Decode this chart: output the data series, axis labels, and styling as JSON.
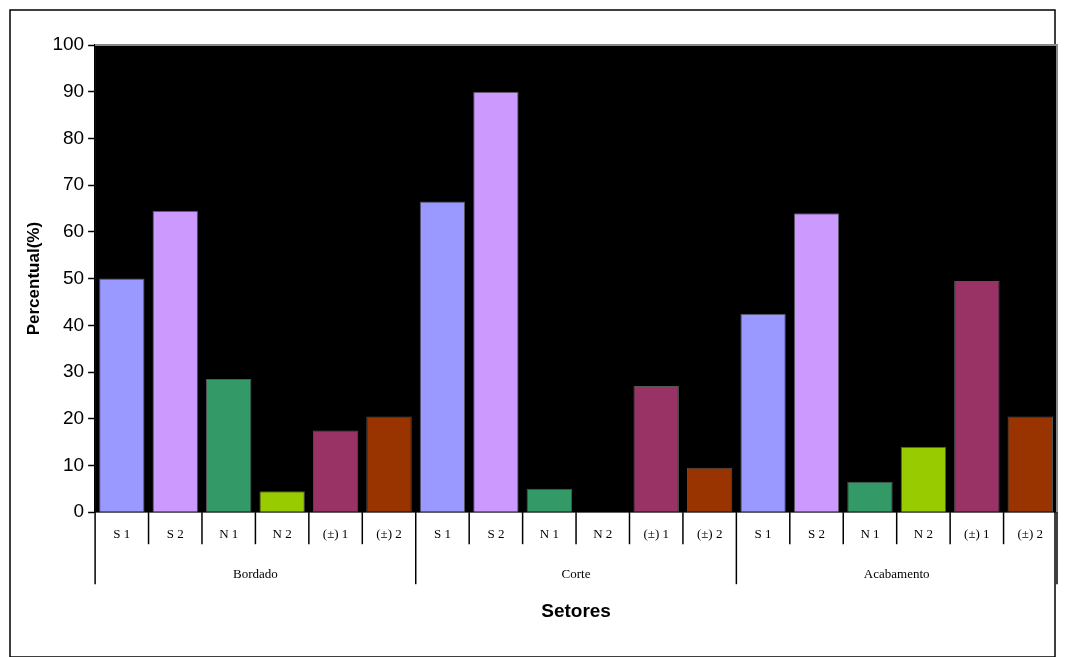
{
  "chart_data": {
    "type": "bar",
    "xlabel": "Setores",
    "ylabel": "Percentual(%)",
    "categories": [
      "Bordado",
      "Corte",
      "Acabamento"
    ],
    "series": [
      {
        "name": "S 1",
        "color": "#9999ff",
        "values": [
          50,
          66.5,
          42.5
        ]
      },
      {
        "name": "S 2",
        "color": "#cc99ff",
        "values": [
          64.5,
          90,
          64
        ]
      },
      {
        "name": "N 1",
        "color": "#339966",
        "values": [
          28.5,
          5,
          6.5
        ]
      },
      {
        "name": "N 2",
        "color": "#99cc00",
        "values": [
          4.5,
          0,
          14
        ]
      },
      {
        "name": "(±) 1",
        "color": "#993366",
        "values": [
          17.5,
          27,
          49.5
        ]
      },
      {
        "name": "(±) 2",
        "color": "#993300",
        "values": [
          20.5,
          9.5,
          20.5
        ]
      }
    ],
    "ylim": [
      0,
      100
    ],
    "yticks": [
      0,
      10,
      20,
      30,
      40,
      50,
      60,
      70,
      80,
      90,
      100
    ],
    "grid": false,
    "legend": false
  }
}
